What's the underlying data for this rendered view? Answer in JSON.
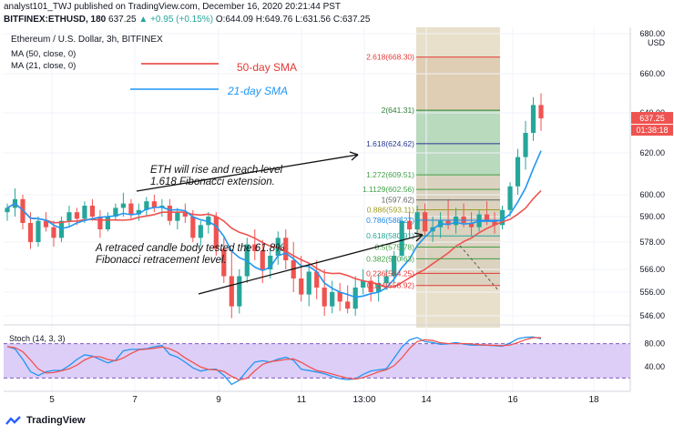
{
  "header": {
    "line1": "analyst101_TWJ published on TradingView.com, December 16, 2020 20:21:44 PST",
    "symbol": "BITFINEX:ETHUSD, 180",
    "last": "637.25",
    "change": "▲ +0.95 (+0.15%)",
    "o": "O:644.09",
    "h": "H:649.76",
    "l": "L:631.56",
    "c": "C:637.25"
  },
  "legend": {
    "title": "Ethereum / U.S. Dollar, 3h, BITFINEX",
    "ma50": "MA (50, close, 0)",
    "ma21": "MA (21, close, 0)",
    "sma50_label": "50-day SMA",
    "sma21_label": "21-day SMA"
  },
  "annotations": {
    "rise_line1": "ETH will rise and reach level",
    "rise_line2": "1.618 Fibonacci extension.",
    "retrace_line1": "A retraced candle body tested the 61.8%",
    "retrace_line2": "Fibonacci retracement level."
  },
  "price_scale": {
    "currency": "USD",
    "last_price": "637.25",
    "countdown": "01:38:18",
    "ticks": [
      "680.00",
      "660.00",
      "640.00",
      "620.00",
      "600.00",
      "590.00",
      "578.00",
      "566.00",
      "556.00",
      "546.00"
    ]
  },
  "stoch": {
    "label": "Stoch (14, 3, 3)",
    "ticks": [
      "80.00",
      "40.00"
    ],
    "levels": [
      80,
      20
    ]
  },
  "time_axis": [
    "5",
    "7",
    "9",
    "11",
    "13:00",
    "14",
    "16",
    "18"
  ],
  "fib_levels": [
    {
      "label": "2.618(668.30)",
      "price": 668.3,
      "color": "#e53935"
    },
    {
      "label": "2(641.31)",
      "price": 641.31,
      "color": "#2e7d32"
    },
    {
      "label": "1.618(624.62)",
      "price": 624.62,
      "color": "#283593"
    },
    {
      "label": "1.272(609.51)",
      "price": 609.51,
      "color": "#43a047"
    },
    {
      "label": "1.1129(602.56)",
      "price": 602.56,
      "color": "#43a047"
    },
    {
      "label": "1(597.62)",
      "price": 597.62,
      "color": "#616161"
    },
    {
      "label": "0.886(593.11)",
      "price": 593.11,
      "color": "#9e9d24"
    },
    {
      "label": "0.786(588.27)",
      "price": 588.27,
      "color": "#1e88e5"
    },
    {
      "label": "0.618(580.91)",
      "price": 580.91,
      "color": "#26a69a"
    },
    {
      "label": "0.5(575.78)",
      "price": 575.78,
      "color": "#43a047"
    },
    {
      "label": "0.382(570.63)",
      "price": 570.63,
      "color": "#43a047"
    },
    {
      "label": "0.236(564.25)",
      "price": 564.25,
      "color": "#e53935"
    },
    {
      "label": "0.114(558.92)",
      "price": 558.92,
      "color": "#e53935"
    }
  ],
  "chart_data": {
    "type": "candlestick",
    "title": "Ethereum / U.S. Dollar, 3h, BITFINEX",
    "ylabel": "USD",
    "x_ticks": [
      "5",
      "7",
      "9",
      "11",
      "13:00",
      "14",
      "16",
      "18"
    ],
    "candles": [
      [
        592,
        596,
        588,
        594
      ],
      [
        594,
        603,
        590,
        598
      ],
      [
        598,
        600,
        584,
        587
      ],
      [
        587,
        592,
        575,
        578
      ],
      [
        578,
        590,
        576,
        588
      ],
      [
        588,
        592,
        583,
        585
      ],
      [
        585,
        588,
        576,
        580
      ],
      [
        580,
        590,
        578,
        588
      ],
      [
        588,
        595,
        585,
        592
      ],
      [
        592,
        594,
        586,
        589
      ],
      [
        589,
        597,
        587,
        595
      ],
      [
        595,
        598,
        588,
        590
      ],
      [
        590,
        593,
        580,
        584
      ],
      [
        584,
        592,
        583,
        590
      ],
      [
        590,
        596,
        588,
        594
      ],
      [
        594,
        601,
        590,
        596
      ],
      [
        596,
        598,
        589,
        591
      ],
      [
        591,
        596,
        588,
        593
      ],
      [
        593,
        599,
        590,
        597
      ],
      [
        597,
        600,
        592,
        594
      ],
      [
        594,
        598,
        590,
        595
      ],
      [
        595,
        598,
        586,
        588
      ],
      [
        588,
        594,
        584,
        592
      ],
      [
        592,
        596,
        587,
        590
      ],
      [
        590,
        593,
        578,
        580
      ],
      [
        580,
        588,
        576,
        586
      ],
      [
        586,
        592,
        582,
        590
      ],
      [
        590,
        592,
        572,
        575
      ],
      [
        575,
        580,
        560,
        563
      ],
      [
        563,
        574,
        545,
        550
      ],
      [
        550,
        566,
        547,
        563
      ],
      [
        563,
        580,
        560,
        577
      ],
      [
        577,
        584,
        570,
        574
      ],
      [
        574,
        579,
        560,
        566
      ],
      [
        566,
        575,
        562,
        572
      ],
      [
        572,
        583,
        568,
        580
      ],
      [
        580,
        584,
        566,
        570
      ],
      [
        570,
        578,
        556,
        562
      ],
      [
        562,
        572,
        552,
        555
      ],
      [
        555,
        569,
        550,
        565
      ],
      [
        565,
        570,
        553,
        558
      ],
      [
        558,
        566,
        546,
        550
      ],
      [
        550,
        561,
        547,
        556
      ],
      [
        556,
        560,
        548,
        552
      ],
      [
        552,
        559,
        547,
        549
      ],
      [
        549,
        563,
        546,
        558
      ],
      [
        558,
        566,
        555,
        561
      ],
      [
        561,
        563,
        552,
        556
      ],
      [
        556,
        564,
        552,
        560
      ],
      [
        560,
        566,
        557,
        563
      ],
      [
        563,
        574,
        560,
        572
      ],
      [
        572,
        590,
        570,
        588
      ],
      [
        588,
        592,
        580,
        584
      ],
      [
        584,
        595,
        581,
        592
      ],
      [
        592,
        596,
        580,
        583
      ],
      [
        583,
        590,
        578,
        585
      ],
      [
        585,
        592,
        580,
        588
      ],
      [
        588,
        598,
        584,
        586
      ],
      [
        586,
        594,
        582,
        590
      ],
      [
        590,
        596,
        585,
        587
      ],
      [
        587,
        592,
        581,
        585
      ],
      [
        585,
        593,
        583,
        591
      ],
      [
        591,
        597,
        586,
        588
      ],
      [
        588,
        592,
        582,
        586
      ],
      [
        586,
        595,
        584,
        593
      ],
      [
        593,
        606,
        590,
        604
      ],
      [
        604,
        622,
        600,
        618
      ],
      [
        618,
        636,
        612,
        630
      ],
      [
        630,
        648,
        626,
        644
      ],
      [
        644,
        650,
        631,
        637.25
      ]
    ],
    "sma50": [],
    "sma21": []
  }
}
